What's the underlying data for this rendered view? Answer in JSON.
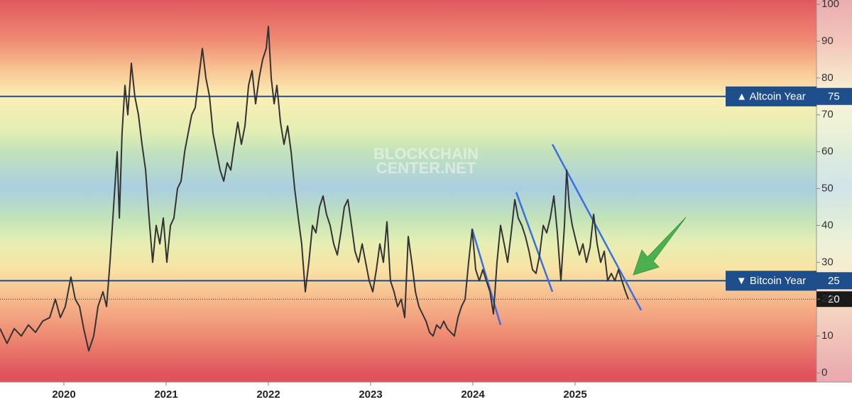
{
  "chart_data": {
    "type": "line",
    "xlim": [
      2019.375,
      2027.361
    ],
    "xticks": [
      2020,
      2021,
      2022,
      2023,
      2024,
      2025
    ],
    "ylim": [
      0,
      100
    ],
    "yticks": [
      0,
      10,
      20,
      30,
      40,
      50,
      60,
      70,
      80,
      90,
      100
    ],
    "watermark": [
      "BLOCKCHAIN",
      "CENTER.NET"
    ],
    "hlines": [
      {
        "value": 75,
        "label": "▲ Altcoin Year",
        "color": "#1f4e8c"
      },
      {
        "value": 25,
        "label": "▼ Bitcoin Year",
        "color": "#1f4e8c"
      }
    ],
    "trendlines": [
      {
        "x": [
          2023.993,
          2024.271
        ],
        "y": [
          39,
          13
        ],
        "color": "#3b6fe0"
      },
      {
        "x": [
          2024.424,
          2024.778
        ],
        "y": [
          49,
          22
        ],
        "color": "#3b6fe0"
      },
      {
        "x": [
          2024.778,
          2025.646
        ],
        "y": [
          62,
          17
        ],
        "color": "#3b6fe0"
      }
    ],
    "series": [
      {
        "color": "#333333",
        "x": [
          2019.375,
          2019.444,
          2019.514,
          2019.583,
          2019.653,
          2019.722,
          2019.792,
          2019.861,
          2019.917,
          2019.965,
          2020.014,
          2020.069,
          2020.111,
          2020.153,
          2020.194,
          2020.243,
          2020.292,
          2020.333,
          2020.382,
          2020.417,
          2020.451,
          2020.486,
          2020.521,
          2020.542,
          2020.569,
          2020.597,
          2020.625,
          2020.66,
          2020.694,
          2020.729,
          2020.764,
          2020.799,
          2020.833,
          2020.868,
          2020.903,
          2020.938,
          2020.972,
          2021.007,
          2021.042,
          2021.076,
          2021.111,
          2021.146,
          2021.181,
          2021.215,
          2021.25,
          2021.285,
          2021.319,
          2021.354,
          2021.389,
          2021.424,
          2021.458,
          2021.493,
          2021.528,
          2021.563,
          2021.597,
          2021.632,
          2021.667,
          2021.701,
          2021.736,
          2021.771,
          2021.806,
          2021.84,
          2021.875,
          2021.91,
          2021.944,
          2021.979,
          2022.0,
          2022.028,
          2022.056,
          2022.083,
          2022.118,
          2022.153,
          2022.188,
          2022.222,
          2022.257,
          2022.292,
          2022.326,
          2022.361,
          2022.396,
          2022.431,
          2022.465,
          2022.5,
          2022.535,
          2022.569,
          2022.604,
          2022.639,
          2022.674,
          2022.708,
          2022.743,
          2022.778,
          2022.813,
          2022.847,
          2022.882,
          2022.917,
          2022.951,
          2022.986,
          2023.021,
          2023.056,
          2023.09,
          2023.125,
          2023.16,
          2023.194,
          2023.229,
          2023.264,
          2023.299,
          2023.333,
          2023.368,
          2023.403,
          2023.438,
          2023.472,
          2023.507,
          2023.542,
          2023.576,
          2023.611,
          2023.646,
          2023.681,
          2023.715,
          2023.75,
          2023.785,
          2023.819,
          2023.854,
          2023.889,
          2023.924,
          2023.958,
          2023.993,
          2024.028,
          2024.063,
          2024.097,
          2024.132,
          2024.167,
          2024.201,
          2024.236,
          2024.271,
          2024.306,
          2024.34,
          2024.375,
          2024.41,
          2024.444,
          2024.479,
          2024.514,
          2024.549,
          2024.583,
          2024.618,
          2024.653,
          2024.688,
          2024.722,
          2024.757,
          2024.792,
          2024.826,
          2024.861,
          2024.896,
          2024.917,
          2024.944,
          2024.972,
          2025.007,
          2025.042,
          2025.076,
          2025.111,
          2025.146,
          2025.181,
          2025.215,
          2025.25,
          2025.285,
          2025.319,
          2025.354,
          2025.389,
          2025.424,
          2025.458,
          2025.493,
          2025.521
        ],
        "values": [
          12,
          8,
          12,
          10,
          13,
          11,
          14,
          15,
          20,
          15,
          18,
          26,
          20,
          18,
          12,
          6,
          10,
          18,
          22,
          18,
          30,
          45,
          60,
          42,
          65,
          78,
          70,
          84,
          75,
          70,
          62,
          55,
          42,
          30,
          40,
          35,
          42,
          30,
          40,
          42,
          50,
          52,
          60,
          65,
          70,
          72,
          80,
          88,
          80,
          75,
          65,
          60,
          55,
          52,
          57,
          55,
          62,
          68,
          62,
          67,
          78,
          82,
          73,
          80,
          85,
          88,
          94,
          80,
          73,
          78,
          68,
          62,
          67,
          60,
          50,
          42,
          35,
          22,
          30,
          40,
          38,
          45,
          48,
          43,
          40,
          35,
          32,
          38,
          45,
          47,
          40,
          33,
          30,
          35,
          30,
          25,
          22,
          28,
          35,
          30,
          41,
          25,
          22,
          18,
          20,
          15,
          37,
          30,
          22,
          18,
          16,
          14,
          11,
          10,
          13,
          12,
          14,
          12,
          11,
          10,
          15,
          18,
          20,
          30,
          39,
          28,
          25,
          28,
          25,
          22,
          16,
          30,
          40,
          35,
          30,
          38,
          47,
          42,
          40,
          37,
          33,
          28,
          27,
          32,
          40,
          38,
          42,
          48,
          38,
          25,
          40,
          55,
          45,
          40,
          36,
          32,
          35,
          30,
          34,
          43,
          35,
          30,
          33,
          25,
          27,
          25,
          28,
          25,
          22,
          20
        ]
      }
    ]
  }
}
